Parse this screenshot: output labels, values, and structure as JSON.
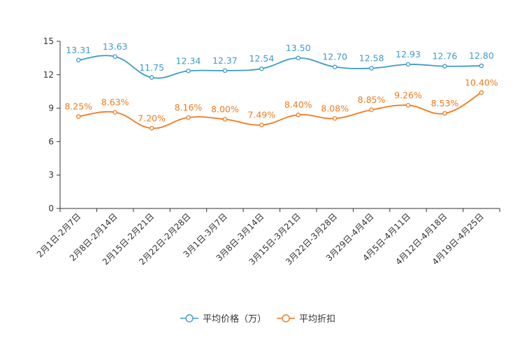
{
  "chart_data": {
    "type": "line",
    "categories": [
      "2月1日-2月7日",
      "2月8日-2月14日",
      "2月15日-2月21日",
      "2月22日-2月28日",
      "3月1日-3月7日",
      "3月8日-3月14日",
      "3月15日-3月21日",
      "3月22日-3月28日",
      "3月29日-4月4日",
      "4月5日-4月11日",
      "4月12日-4月18日",
      "4月19日-4月25日"
    ],
    "series": [
      {
        "name": "平均价格（万）",
        "color": "#3d9bc9",
        "values": [
          13.31,
          13.63,
          11.75,
          12.34,
          12.37,
          12.54,
          13.5,
          12.7,
          12.58,
          12.93,
          12.76,
          12.8
        ],
        "labels": [
          "13.31",
          "13.63",
          "11.75",
          "12.34",
          "12.37",
          "12.54",
          "13.50",
          "12.70",
          "12.58",
          "12.93",
          "12.76",
          "12.80"
        ]
      },
      {
        "name": "平均折扣",
        "color": "#f07a1e",
        "values": [
          8.25,
          8.63,
          7.2,
          8.16,
          8.0,
          7.49,
          8.4,
          8.08,
          8.85,
          9.26,
          8.53,
          10.4
        ],
        "labels": [
          "8.25%",
          "8.63%",
          "7.20%",
          "8.16%",
          "8.00%",
          "7.49%",
          "8.40%",
          "8.08%",
          "8.85%",
          "9.26%",
          "8.53%",
          "10.40%"
        ]
      }
    ],
    "yticks": [
      "0",
      "3",
      "6",
      "9",
      "12",
      "15"
    ],
    "ylim": [
      0,
      15
    ],
    "title": "",
    "xlabel": "",
    "ylabel": "",
    "legend_position": "bottom-center"
  }
}
